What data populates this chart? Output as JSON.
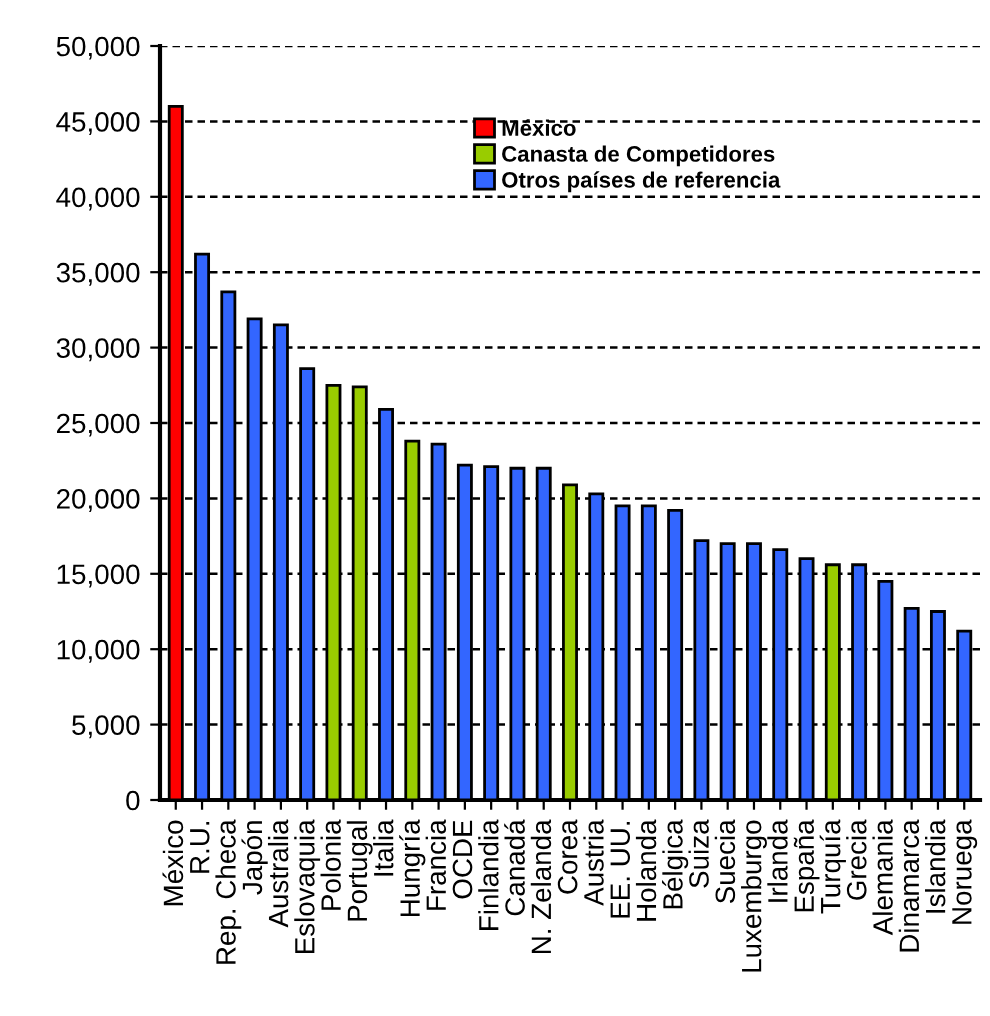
{
  "chart_data": {
    "type": "bar",
    "categories": [
      "México",
      "R.U.",
      "Rep. Checa",
      "Japón",
      "Australia",
      "Eslovaquia",
      "Polonia",
      "Portugal",
      "Italia",
      "Hungría",
      "Francia",
      "OCDE",
      "Finlandia",
      "Canadá",
      "N. Zelanda",
      "Corea",
      "Austria",
      "EE. UU.",
      "Holanda",
      "Bélgica",
      "Suiza",
      "Suecia",
      "Luxemburgo",
      "Irlanda",
      "España",
      "Turquía",
      "Grecia",
      "Alemania",
      "Dinamarca",
      "Islandia",
      "Noruega"
    ],
    "series": [
      {
        "name": "México",
        "color": "#ff0000",
        "values": [
          46000,
          null,
          null,
          null,
          null,
          null,
          null,
          null,
          null,
          null,
          null,
          null,
          null,
          null,
          null,
          null,
          null,
          null,
          null,
          null,
          null,
          null,
          null,
          null,
          null,
          null,
          null,
          null,
          null,
          null,
          null
        ]
      },
      {
        "name": "Canasta de Competidores",
        "color": "#99cc00",
        "values": [
          null,
          null,
          null,
          null,
          null,
          null,
          27500,
          27400,
          null,
          23800,
          null,
          null,
          null,
          null,
          null,
          20900,
          null,
          null,
          null,
          null,
          null,
          null,
          null,
          null,
          null,
          15600,
          null,
          null,
          null,
          null,
          null
        ]
      },
      {
        "name": "Otros países de referencia",
        "color": "#3366ff",
        "values": [
          null,
          36200,
          33700,
          31900,
          31500,
          28600,
          null,
          null,
          25900,
          null,
          23600,
          22200,
          22100,
          22000,
          22000,
          null,
          20300,
          19500,
          19500,
          19200,
          17200,
          17000,
          17000,
          16600,
          16000,
          null,
          15600,
          14500,
          12700,
          12500,
          11200
        ]
      }
    ],
    "ylim": [
      0,
      50000
    ],
    "yticks": [
      {
        "value": 0,
        "label": "0"
      },
      {
        "value": 5000,
        "label": "5,000"
      },
      {
        "value": 10000,
        "label": "10,000"
      },
      {
        "value": 15000,
        "label": "15,000"
      },
      {
        "value": 20000,
        "label": "20,000"
      },
      {
        "value": 25000,
        "label": "25,000"
      },
      {
        "value": 30000,
        "label": "30,000"
      },
      {
        "value": 35000,
        "label": "35,000"
      },
      {
        "value": 40000,
        "label": "40,000"
      },
      {
        "value": 45000,
        "label": "45,000"
      },
      {
        "value": 50000,
        "label": "50,000"
      }
    ],
    "grid": "y",
    "legend": "top"
  }
}
